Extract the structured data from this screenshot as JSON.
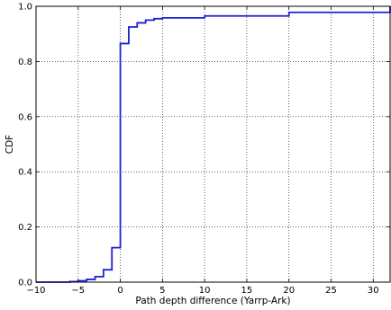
{
  "chart_data": {
    "type": "line",
    "title": "",
    "xlabel": "Path depth difference (Yarrp-Ark)",
    "ylabel": "CDF",
    "xlim": [
      -10,
      32
    ],
    "ylim": [
      0,
      1.0
    ],
    "grid": true,
    "xticks": [
      -10,
      -5,
      0,
      5,
      10,
      15,
      20,
      25,
      30
    ],
    "xtick_labels": [
      "−10",
      "−5",
      "0",
      "5",
      "10",
      "15",
      "20",
      "25",
      "30"
    ],
    "yticks": [
      0,
      0.2,
      0.4,
      0.6,
      0.8,
      1.0
    ],
    "ytick_labels": [
      "0.0",
      "0.2",
      "0.4",
      "0.6",
      "0.8",
      "1.0"
    ],
    "series": [
      {
        "color": "#1f1fd6",
        "step": true,
        "x": [
          -10,
          -6,
          -5,
          -4,
          -3,
          -2,
          -1,
          0,
          1,
          2,
          3,
          4,
          5,
          10,
          20,
          32
        ],
        "y": [
          0,
          0.002,
          0.005,
          0.01,
          0.02,
          0.045,
          0.125,
          0.865,
          0.925,
          0.94,
          0.95,
          0.955,
          0.958,
          0.965,
          0.978,
          1.0
        ]
      }
    ]
  }
}
